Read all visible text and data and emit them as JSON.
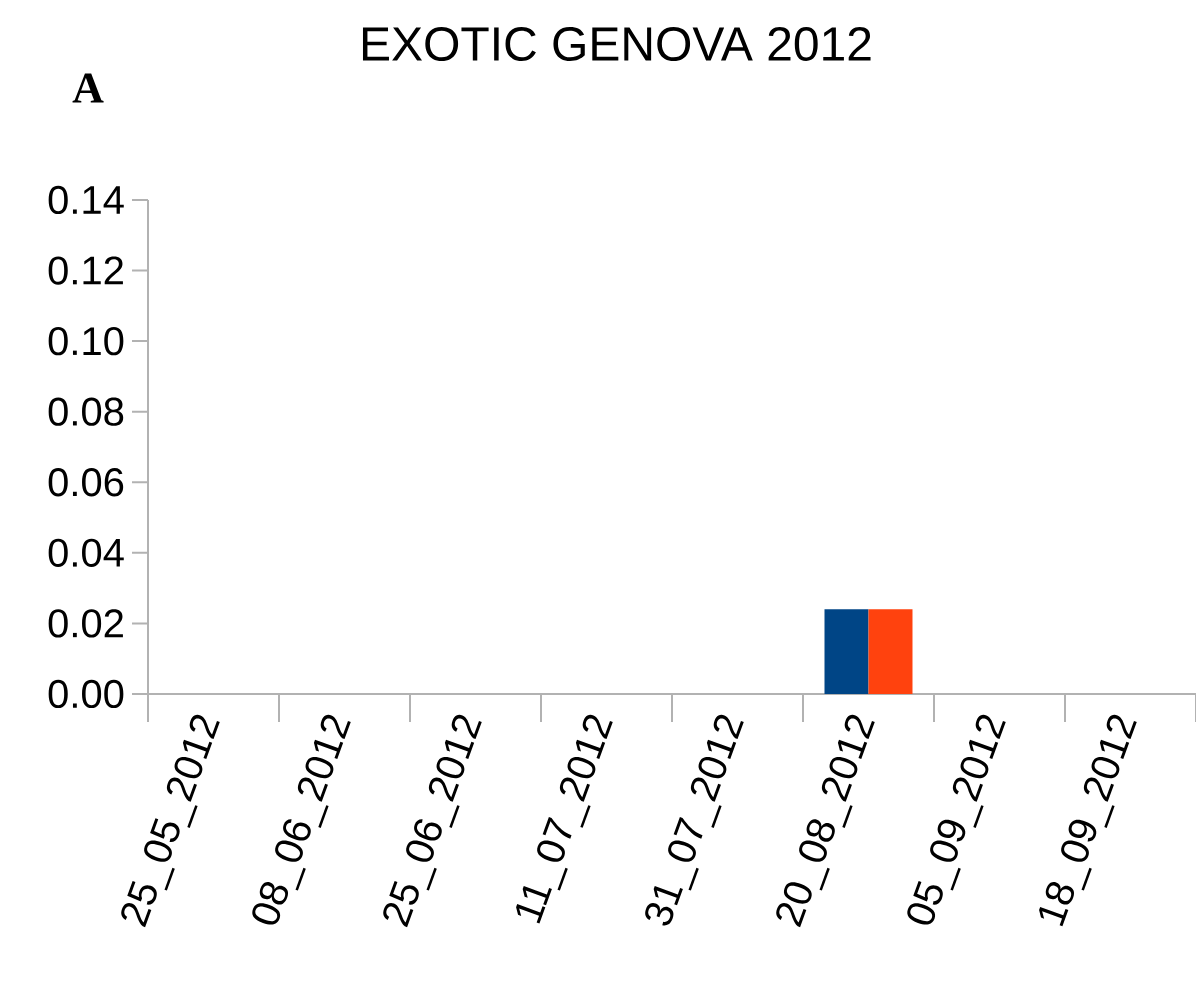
{
  "chart_data": {
    "type": "bar",
    "title": "EXOTIC GENOVA 2012",
    "annotations": [
      "A"
    ],
    "categories": [
      "25_05_2012",
      "08_06_2012",
      "25_06_2012",
      "11_07_2012",
      "31_07_2012",
      "20_08_2012",
      "05_09_2012",
      "18_09_2012"
    ],
    "series": [
      {
        "color": "#004586",
        "values": [
          0,
          0,
          0,
          0,
          0,
          0.024,
          0,
          0
        ]
      },
      {
        "color": "#ff420e",
        "values": [
          0,
          0,
          0,
          0,
          0,
          0.024,
          0,
          0
        ]
      }
    ],
    "ylim": [
      0,
      0.14
    ],
    "yticks": [
      {
        "value": 0,
        "label": "0.00"
      },
      0.02,
      0.04,
      0.06,
      0.08,
      {
        "value": 0.1,
        "label": "0.10"
      },
      0.12,
      0.14
    ]
  }
}
